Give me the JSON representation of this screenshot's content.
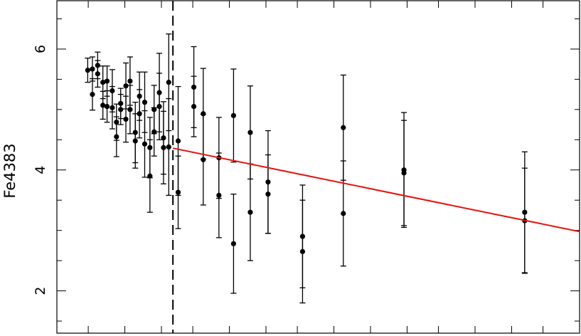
{
  "chart_data": {
    "type": "scatter",
    "title": "",
    "xlabel": "",
    "ylabel": "Fe4383",
    "xlim": [
      0,
      1
    ],
    "ylim": [
      1.3,
      6.8
    ],
    "x_ticks": [
      0.06,
      0.13,
      0.2,
      0.26,
      0.33,
      0.4,
      0.46,
      0.53,
      0.6,
      0.67,
      0.73,
      0.8,
      0.87,
      0.93
    ],
    "y_ticks": [
      2,
      4,
      6
    ],
    "y_tick_labels": [
      "2",
      "4",
      "6"
    ],
    "colors": {
      "fit_line": "#e8120c",
      "points": "#000000"
    },
    "points": [
      {
        "x": 0.059,
        "y": 5.65,
        "err": 0.2
      },
      {
        "x": 0.068,
        "y": 5.67,
        "err": 0.2
      },
      {
        "x": 0.068,
        "y": 5.25,
        "err": 0.26
      },
      {
        "x": 0.078,
        "y": 5.73,
        "err": 0.22
      },
      {
        "x": 0.078,
        "y": 5.59,
        "err": 0.22
      },
      {
        "x": 0.088,
        "y": 5.45,
        "err": 0.27
      },
      {
        "x": 0.088,
        "y": 5.07,
        "err": 0.23
      },
      {
        "x": 0.096,
        "y": 5.47,
        "err": 0.25
      },
      {
        "x": 0.096,
        "y": 5.05,
        "err": 0.26
      },
      {
        "x": 0.106,
        "y": 5.31,
        "err": 0.35
      },
      {
        "x": 0.106,
        "y": 5.03,
        "err": 0.35
      },
      {
        "x": 0.114,
        "y": 4.79,
        "err": 0.3
      },
      {
        "x": 0.114,
        "y": 4.55,
        "err": 0.33
      },
      {
        "x": 0.122,
        "y": 5.1,
        "err": 0.25
      },
      {
        "x": 0.122,
        "y": 5.0,
        "err": 0.25
      },
      {
        "x": 0.132,
        "y": 5.39,
        "err": 0.38
      },
      {
        "x": 0.132,
        "y": 4.84,
        "err": 0.38
      },
      {
        "x": 0.14,
        "y": 5.47,
        "err": 0.4
      },
      {
        "x": 0.14,
        "y": 5.0,
        "err": 0.4
      },
      {
        "x": 0.15,
        "y": 4.62,
        "err": 0.5
      },
      {
        "x": 0.15,
        "y": 4.48,
        "err": 0.45
      },
      {
        "x": 0.158,
        "y": 5.22,
        "err": 0.4
      },
      {
        "x": 0.158,
        "y": 4.93,
        "err": 0.4
      },
      {
        "x": 0.168,
        "y": 5.12,
        "err": 0.5
      },
      {
        "x": 0.168,
        "y": 4.43,
        "err": 0.55
      },
      {
        "x": 0.178,
        "y": 4.37,
        "err": 0.5
      },
      {
        "x": 0.178,
        "y": 3.9,
        "err": 0.6
      },
      {
        "x": 0.186,
        "y": 5.0,
        "err": 0.4
      },
      {
        "x": 0.186,
        "y": 4.63,
        "err": 0.4
      },
      {
        "x": 0.196,
        "y": 5.28,
        "err": 0.65
      },
      {
        "x": 0.196,
        "y": 5.05,
        "err": 0.55
      },
      {
        "x": 0.204,
        "y": 4.53,
        "err": 0.6
      },
      {
        "x": 0.204,
        "y": 4.37,
        "err": 0.6
      },
      {
        "x": 0.214,
        "y": 5.45,
        "err": 0.8
      },
      {
        "x": 0.214,
        "y": 4.38,
        "err": 0.8
      },
      {
        "x": 0.232,
        "y": 4.48,
        "err": 0.9
      },
      {
        "x": 0.232,
        "y": 3.63,
        "err": 0.6
      },
      {
        "x": 0.262,
        "y": 5.37,
        "err": 0.67
      },
      {
        "x": 0.262,
        "y": 5.05,
        "err": 0.5
      },
      {
        "x": 0.28,
        "y": 4.93,
        "err": 0.75
      },
      {
        "x": 0.28,
        "y": 4.17,
        "err": 0.75
      },
      {
        "x": 0.31,
        "y": 4.2,
        "err": 0.67
      },
      {
        "x": 0.31,
        "y": 3.58,
        "err": 0.7
      },
      {
        "x": 0.338,
        "y": 4.9,
        "err": 0.77
      },
      {
        "x": 0.338,
        "y": 2.78,
        "err": 0.82
      },
      {
        "x": 0.37,
        "y": 4.62,
        "err": 0.77
      },
      {
        "x": 0.37,
        "y": 3.3,
        "err": 0.8
      },
      {
        "x": 0.404,
        "y": 3.8,
        "err": 0.85
      },
      {
        "x": 0.404,
        "y": 3.6,
        "err": 0.65
      },
      {
        "x": 0.47,
        "y": 2.9,
        "err": 0.85
      },
      {
        "x": 0.47,
        "y": 2.65,
        "err": 0.85
      },
      {
        "x": 0.548,
        "y": 4.7,
        "err": 0.87
      },
      {
        "x": 0.548,
        "y": 3.28,
        "err": 0.87
      },
      {
        "x": 0.664,
        "y": 4.0,
        "err": 0.95
      },
      {
        "x": 0.664,
        "y": 3.95,
        "err": 0.87
      },
      {
        "x": 0.895,
        "y": 3.3,
        "err": 1.0
      },
      {
        "x": 0.895,
        "y": 3.16,
        "err": 0.87
      }
    ],
    "vertical_line": {
      "x": 0.222,
      "style": "dashed"
    },
    "fit_line": {
      "x": [
        0.222,
        1.0
      ],
      "y": [
        4.36,
        2.98
      ]
    },
    "grid": false,
    "legend": "none"
  }
}
